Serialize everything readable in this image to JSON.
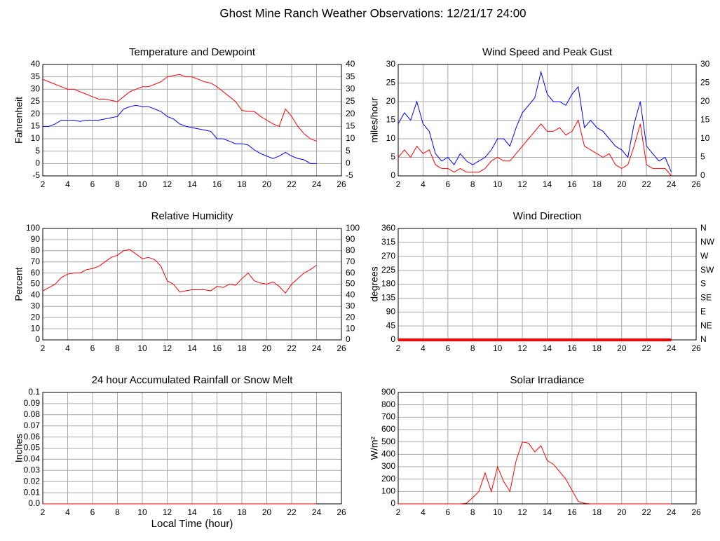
{
  "title": "Ghost Mine Ranch Weather Observations: 12/21/17 24:00",
  "chart_data": [
    {
      "type": "line",
      "title": "Temperature and Dewpoint",
      "ylabel": "Fahrenheit",
      "x": [
        2,
        2.5,
        3,
        3.5,
        4,
        4.5,
        5,
        5.5,
        6,
        6.5,
        7,
        7.5,
        8,
        8.5,
        9,
        9.5,
        10,
        10.5,
        11,
        11.5,
        12,
        12.5,
        13,
        13.5,
        14,
        14.5,
        15,
        15.5,
        16,
        16.5,
        17,
        17.5,
        18,
        18.5,
        19,
        19.5,
        20,
        20.5,
        21,
        21.5,
        22,
        22.5,
        23,
        23.5,
        24
      ],
      "series": [
        {
          "color": "#ff0000",
          "values": [
            34,
            33,
            32,
            31,
            30,
            30,
            29,
            28,
            27,
            26,
            26,
            25.5,
            25,
            27,
            29,
            30,
            31,
            31,
            32,
            33,
            35,
            35.5,
            36,
            35,
            35,
            34,
            33,
            32.5,
            31,
            29,
            27,
            25,
            21.5,
            21,
            21,
            19,
            17.5,
            16,
            15,
            22,
            19,
            15,
            12,
            10,
            9
          ]
        },
        {
          "color": "#0000ff",
          "values": [
            15,
            15,
            16,
            17.5,
            17.5,
            17.5,
            17,
            17.5,
            17.5,
            17.5,
            18,
            18.5,
            19,
            22,
            23,
            23.5,
            23,
            23,
            22,
            21,
            19,
            18,
            16,
            15,
            14.5,
            14,
            13.5,
            13,
            10,
            10,
            9,
            8,
            8,
            7.5,
            5.5,
            4,
            3,
            2,
            3,
            4.5,
            3,
            2,
            1.5,
            0,
            0
          ]
        }
      ],
      "xlim": [
        2,
        26
      ],
      "xticks": [
        2,
        4,
        6,
        8,
        10,
        12,
        14,
        16,
        18,
        20,
        22,
        24,
        26
      ],
      "ylim": [
        -5,
        40
      ],
      "yticks": [
        -5,
        0,
        5,
        10,
        15,
        20,
        25,
        30,
        35,
        40
      ],
      "mirror_ticks": true,
      "grid": true
    },
    {
      "type": "line",
      "title": "Wind Speed and Peak Gust",
      "ylabel": "miles/hour",
      "x": [
        2,
        2.5,
        3,
        3.5,
        4,
        4.5,
        5,
        5.5,
        6,
        6.5,
        7,
        7.5,
        8,
        8.5,
        9,
        9.5,
        10,
        10.5,
        11,
        11.5,
        12,
        12.5,
        13,
        13.5,
        14,
        14.5,
        15,
        15.5,
        16,
        16.5,
        17,
        17.5,
        18,
        18.5,
        19,
        19.5,
        20,
        20.5,
        21,
        21.5,
        22,
        22.5,
        23,
        23.5,
        24
      ],
      "series": [
        {
          "color": "#0000ff",
          "values": [
            14,
            17,
            15,
            20,
            14,
            12,
            6,
            4,
            5,
            3,
            6,
            4,
            3,
            4,
            5,
            7,
            10,
            10,
            8,
            13,
            17,
            19,
            21,
            28,
            22,
            20,
            20,
            19,
            22,
            24,
            13,
            15,
            13,
            12,
            10,
            8,
            7,
            5,
            14,
            20,
            8,
            6,
            4,
            5,
            1
          ]
        },
        {
          "color": "#ff0000",
          "values": [
            5,
            7,
            5,
            8,
            6,
            7,
            3,
            2,
            2,
            1,
            2,
            1,
            1,
            1,
            2,
            4,
            5,
            4,
            4,
            6,
            8,
            10,
            12,
            14,
            12,
            12,
            13,
            11,
            12,
            15,
            8,
            7,
            6,
            5,
            6,
            3,
            2,
            3,
            8,
            14,
            3,
            2,
            2,
            2,
            0
          ]
        }
      ],
      "xlim": [
        2,
        26
      ],
      "xticks": [
        2,
        4,
        6,
        8,
        10,
        12,
        14,
        16,
        18,
        20,
        22,
        24,
        26
      ],
      "ylim": [
        0,
        30
      ],
      "yticks": [
        0,
        5,
        10,
        15,
        20,
        25,
        30
      ],
      "mirror_ticks": true,
      "grid": true
    },
    {
      "type": "line",
      "title": "Relative Humidity",
      "ylabel": "Percent",
      "x": [
        2,
        2.5,
        3,
        3.5,
        4,
        4.5,
        5,
        5.5,
        6,
        6.5,
        7,
        7.5,
        8,
        8.5,
        9,
        9.5,
        10,
        10.5,
        11,
        11.5,
        12,
        12.5,
        13,
        13.5,
        14,
        14.5,
        15,
        15.5,
        16,
        16.5,
        17,
        17.5,
        18,
        18.5,
        19,
        19.5,
        20,
        20.5,
        21,
        21.5,
        22,
        22.5,
        23,
        23.5,
        24
      ],
      "series": [
        {
          "color": "#ff0000",
          "values": [
            44,
            47,
            50,
            56,
            59,
            60,
            60,
            63,
            64,
            66,
            70,
            74,
            76,
            80,
            81,
            77,
            73,
            74,
            72,
            66,
            53,
            50,
            43,
            44,
            45,
            45,
            45,
            44,
            48,
            47,
            50,
            49,
            55,
            60,
            53,
            51,
            50,
            52,
            48,
            42,
            50,
            55,
            60,
            63,
            67
          ]
        }
      ],
      "xlim": [
        2,
        26
      ],
      "xticks": [
        2,
        4,
        6,
        8,
        10,
        12,
        14,
        16,
        18,
        20,
        22,
        24,
        26
      ],
      "ylim": [
        0,
        100
      ],
      "yticks": [
        0,
        10,
        20,
        30,
        40,
        50,
        60,
        70,
        80,
        90,
        100
      ],
      "mirror_ticks": true,
      "grid": true
    },
    {
      "type": "line",
      "title": "Wind Direction",
      "ylabel": "degrees",
      "x": [
        2,
        24
      ],
      "series": [
        {
          "color": "#ff0000",
          "values": [
            0,
            0
          ],
          "width": 4
        }
      ],
      "xlim": [
        2,
        26
      ],
      "xticks": [
        2,
        4,
        6,
        8,
        10,
        12,
        14,
        16,
        18,
        20,
        22,
        24,
        26
      ],
      "ylim": [
        0,
        360
      ],
      "yticks": [
        0,
        45,
        90,
        135,
        180,
        225,
        270,
        315,
        360
      ],
      "y2lim": [
        0,
        360
      ],
      "y2ticks": [
        {
          "value": 0,
          "label": "N"
        },
        {
          "value": 45,
          "label": "NE"
        },
        {
          "value": 90,
          "label": "E"
        },
        {
          "value": 135,
          "label": "SE"
        },
        {
          "value": 180,
          "label": "S"
        },
        {
          "value": 225,
          "label": "SW"
        },
        {
          "value": 270,
          "label": "W"
        },
        {
          "value": 315,
          "label": "NW"
        },
        {
          "value": 360,
          "label": "N"
        }
      ],
      "grid": true
    },
    {
      "type": "line",
      "title": "24 hour Accumulated Rainfall or Snow Melt",
      "ylabel": "Inches",
      "xlabel": "Local Time (hour)",
      "x": [
        2,
        24
      ],
      "series": [
        {
          "color": "#ff0000",
          "values": [
            0,
            0
          ]
        }
      ],
      "xlim": [
        2,
        26
      ],
      "xticks": [
        2,
        4,
        6,
        8,
        10,
        12,
        14,
        16,
        18,
        20,
        22,
        24,
        26
      ],
      "ylim": [
        0,
        0.1
      ],
      "yticks": [
        {
          "value": 0,
          "label": "0.0"
        },
        0.01,
        0.02,
        0.03,
        0.04,
        0.05,
        0.06,
        0.07,
        0.08,
        0.09,
        0.1
      ],
      "grid": true
    },
    {
      "type": "line",
      "title": "Solar Irradiance",
      "ylabel": "W/m²",
      "x": [
        2,
        2.5,
        3,
        3.5,
        4,
        4.5,
        5,
        5.5,
        6,
        6.5,
        7,
        7.5,
        8,
        8.5,
        9,
        9.5,
        10,
        10.5,
        11,
        11.5,
        12,
        12.5,
        13,
        13.5,
        14,
        14.5,
        15,
        15.5,
        16,
        16.5,
        17,
        17.5,
        18,
        18.5,
        19,
        19.5,
        20,
        20.5,
        21,
        21.5,
        22,
        22.5,
        23,
        23.5,
        24
      ],
      "series": [
        {
          "color": "#ff0000",
          "values": [
            0,
            0,
            0,
            0,
            0,
            0,
            0,
            0,
            0,
            0,
            0,
            5,
            50,
            100,
            250,
            100,
            300,
            180,
            100,
            350,
            500,
            490,
            420,
            470,
            350,
            320,
            260,
            200,
            110,
            20,
            5,
            0,
            0,
            0,
            0,
            0,
            0,
            0,
            0,
            0,
            0,
            0,
            0,
            0,
            0
          ]
        }
      ],
      "xlim": [
        2,
        26
      ],
      "xticks": [
        2,
        4,
        6,
        8,
        10,
        12,
        14,
        16,
        18,
        20,
        22,
        24,
        26
      ],
      "ylim": [
        0,
        900
      ],
      "yticks": [
        0,
        100,
        200,
        300,
        400,
        500,
        600,
        700,
        800,
        900
      ],
      "grid": true
    }
  ]
}
